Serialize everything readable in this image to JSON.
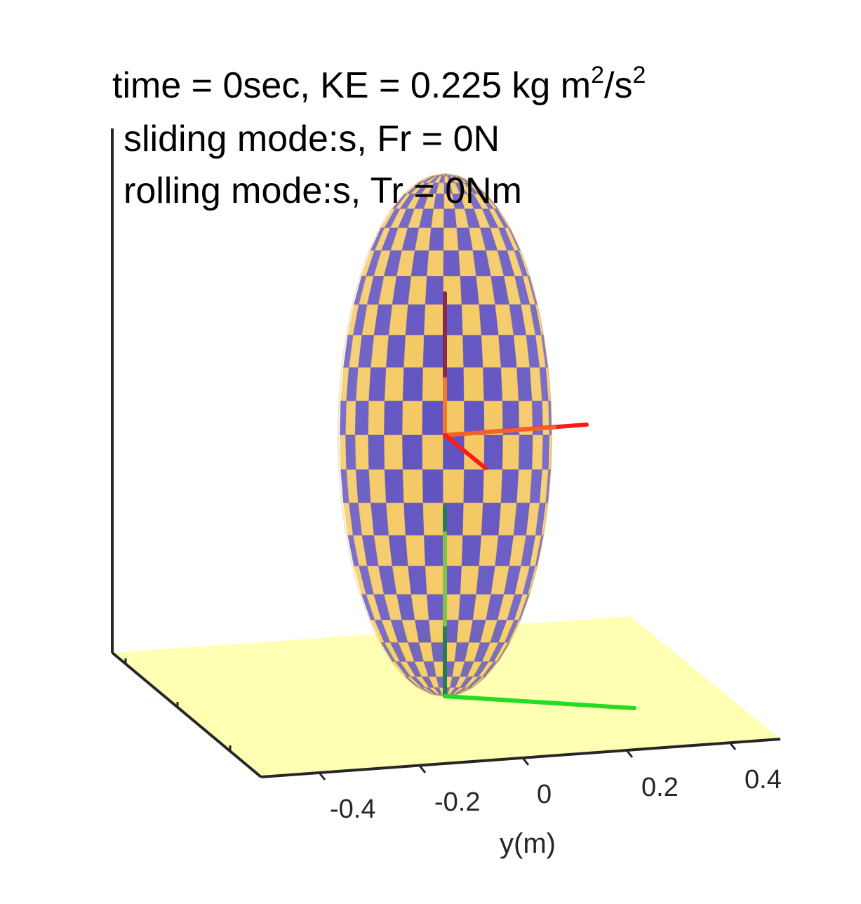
{
  "title": {
    "line1_main": "time = 0sec, KE = 0.225 kg m",
    "line1_sup1": "2",
    "line1_mid": "/s",
    "line1_sup2": "2",
    "line2": "sliding mode:s, Fr = 0N",
    "line3": "rolling mode:s, Tr = 0Nm"
  },
  "axis": {
    "y_label": "y(m)",
    "y_ticks": [
      "-0.4",
      "-0.2",
      "0",
      "0.2",
      "0.4"
    ]
  },
  "colors": {
    "floor": "#ffffb3",
    "tile_a": "#f3c353",
    "tile_b": "#5a4bbd",
    "axis_line": "#262626",
    "body_frame_x": "#ff1a1a",
    "body_frame_y": "#f07a28",
    "body_frame_z": "#8a2a4a",
    "contact_frame_y": "#22dd22",
    "contact_frame_z": "#2a7a5a"
  }
}
